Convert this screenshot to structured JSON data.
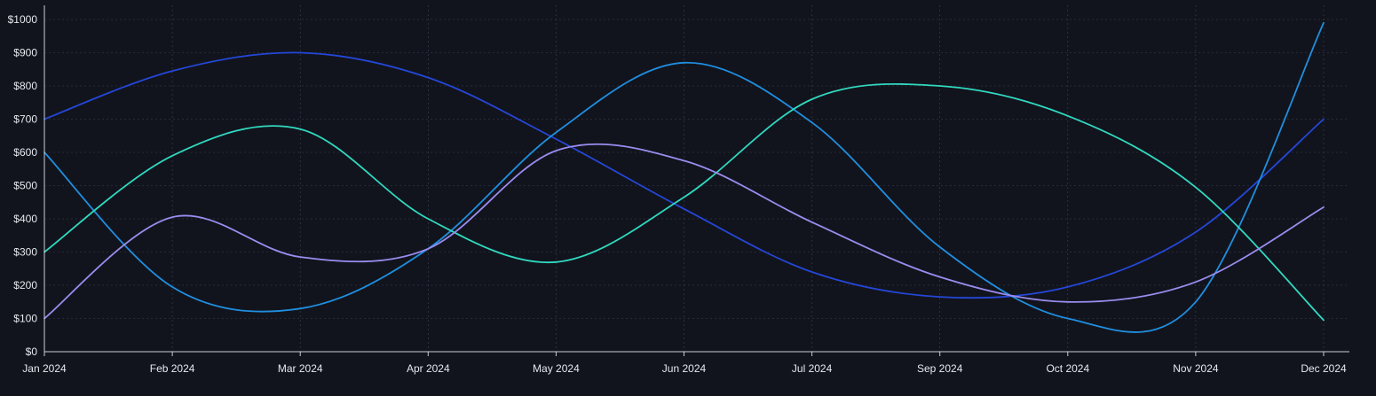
{
  "chart_data": {
    "type": "line",
    "title": "",
    "xlabel": "",
    "ylabel": "",
    "ylim": [
      0,
      1000
    ],
    "y_ticks": [
      0,
      100,
      200,
      300,
      400,
      500,
      600,
      700,
      800,
      900,
      1000
    ],
    "y_tick_labels": [
      "$0",
      "$100",
      "$200",
      "$300",
      "$400",
      "$500",
      "$600",
      "$700",
      "$800",
      "$900",
      "$1000"
    ],
    "categories": [
      "Jan 2024",
      "Feb 2024",
      "Mar 2024",
      "Apr 2024",
      "May 2024",
      "Jun 2024",
      "Jul 2024",
      "Sep 2024",
      "Oct 2024",
      "Nov 2024",
      "Dec 2024"
    ],
    "grid": true,
    "legend": "none",
    "series": [
      {
        "color": "#2447d8",
        "values": [
          700,
          845,
          900,
          825,
          640,
          430,
          240,
          165,
          195,
          360,
          700
        ]
      },
      {
        "color": "#1f8fe0",
        "values": [
          600,
          195,
          130,
          310,
          660,
          870,
          690,
          315,
          100,
          150,
          990
        ]
      },
      {
        "color": "#30d9c0",
        "values": [
          300,
          590,
          670,
          400,
          270,
          465,
          760,
          800,
          710,
          495,
          95
        ]
      },
      {
        "color": "#9b8cf0",
        "values": [
          100,
          405,
          285,
          310,
          605,
          575,
          390,
          225,
          150,
          210,
          435
        ]
      }
    ]
  }
}
